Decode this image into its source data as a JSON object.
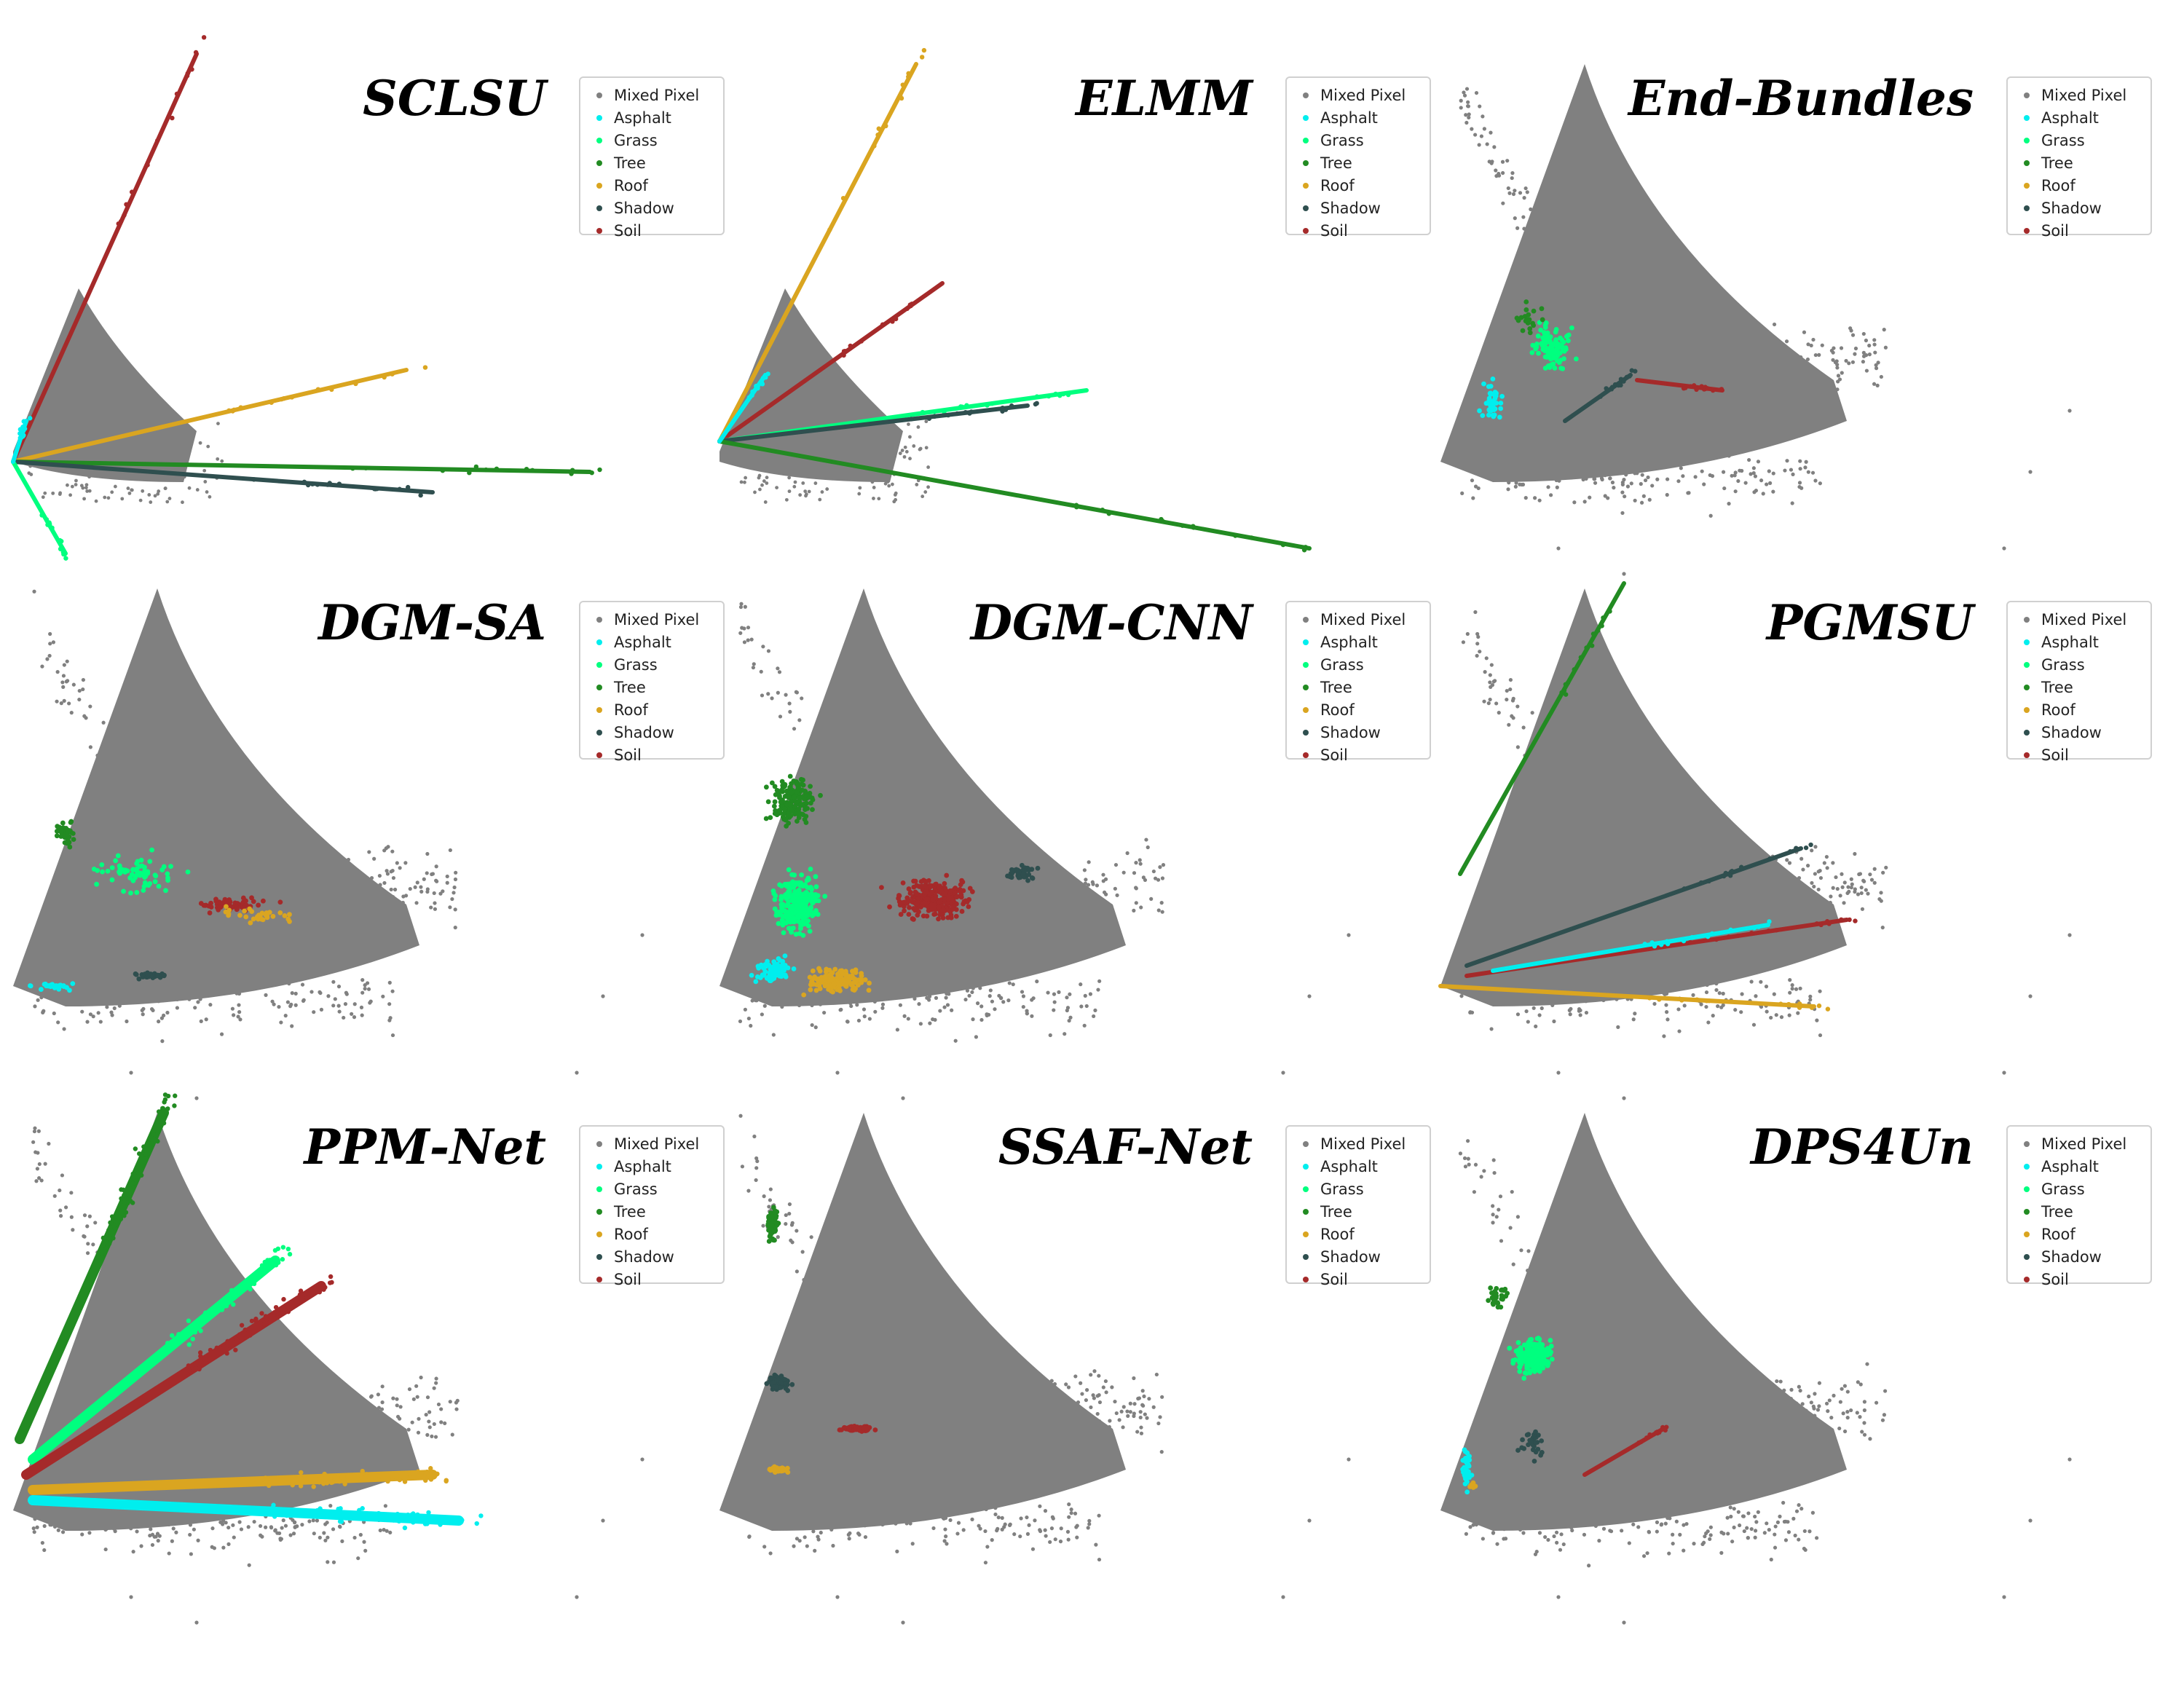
{
  "figure": {
    "legend_labels": [
      "Mixed Pixel",
      "Asphalt",
      "Grass",
      "Tree",
      "Roof",
      "Shadow",
      "Soil"
    ],
    "colors": {
      "Mixed Pixel": "#808080",
      "Asphalt": "#00eeee",
      "Grass": "#00ff7f",
      "Tree": "#228b22",
      "Roof": "#daa520",
      "Shadow": "#2f4f4f",
      "Soil": "#a52a2a"
    }
  },
  "chart_data": [
    {
      "type": "scatter",
      "title": "SCLSU",
      "cloud": "compact",
      "xlim": [
        0,
        1
      ],
      "ylim": [
        0,
        1
      ],
      "endmembers": [
        {
          "name": "Soil",
          "shape": "line",
          "from": [
            0.02,
            0.82
          ],
          "to": [
            0.3,
            0.02
          ]
        },
        {
          "name": "Roof",
          "shape": "line",
          "from": [
            0.02,
            0.82
          ],
          "to": [
            0.62,
            0.64
          ]
        },
        {
          "name": "Tree",
          "shape": "line",
          "from": [
            0.02,
            0.82
          ],
          "to": [
            0.9,
            0.84
          ]
        },
        {
          "name": "Shadow",
          "shape": "line",
          "from": [
            0.02,
            0.82
          ],
          "to": [
            0.66,
            0.88
          ]
        },
        {
          "name": "Grass",
          "shape": "line",
          "from": [
            0.02,
            0.82
          ],
          "to": [
            0.1,
            1.0
          ]
        },
        {
          "name": "Asphalt",
          "shape": "line",
          "from": [
            0.02,
            0.82
          ],
          "to": [
            0.04,
            0.74
          ]
        }
      ]
    },
    {
      "type": "scatter",
      "title": "ELMM",
      "cloud": "compact",
      "xlim": [
        0,
        1
      ],
      "ylim": [
        0,
        1
      ],
      "endmembers": [
        {
          "name": "Roof",
          "shape": "line",
          "from": [
            0.02,
            0.78
          ],
          "to": [
            0.32,
            0.04
          ]
        },
        {
          "name": "Soil",
          "shape": "line",
          "from": [
            0.02,
            0.78
          ],
          "to": [
            0.36,
            0.47
          ]
        },
        {
          "name": "Grass",
          "shape": "line",
          "from": [
            0.02,
            0.78
          ],
          "to": [
            0.58,
            0.68
          ]
        },
        {
          "name": "Shadow",
          "shape": "line",
          "from": [
            0.02,
            0.78
          ],
          "to": [
            0.49,
            0.71
          ]
        },
        {
          "name": "Tree",
          "shape": "line",
          "from": [
            0.02,
            0.78
          ],
          "to": [
            0.92,
            0.99
          ]
        },
        {
          "name": "Asphalt",
          "shape": "line",
          "from": [
            0.02,
            0.78
          ],
          "to": [
            0.09,
            0.65
          ]
        }
      ]
    },
    {
      "type": "scatter",
      "title": "End-Bundles",
      "cloud": "triangle",
      "xlim": [
        0,
        1
      ],
      "ylim": [
        0,
        1
      ],
      "endmembers": [
        {
          "name": "Asphalt",
          "shape": "cluster",
          "center": [
            0.1,
            0.7
          ],
          "spread": [
            0.02,
            0.06
          ],
          "n": 40
        },
        {
          "name": "Grass",
          "shape": "cluster",
          "center": [
            0.19,
            0.6
          ],
          "spread": [
            0.04,
            0.06
          ],
          "n": 120
        },
        {
          "name": "Tree",
          "shape": "cluster",
          "center": [
            0.15,
            0.54
          ],
          "spread": [
            0.03,
            0.04
          ],
          "n": 20
        },
        {
          "name": "Shadow",
          "shape": "line",
          "from": [
            0.21,
            0.74
          ],
          "to": [
            0.31,
            0.65
          ]
        },
        {
          "name": "Soil",
          "shape": "line",
          "from": [
            0.32,
            0.66
          ],
          "to": [
            0.45,
            0.68
          ]
        }
      ]
    },
    {
      "type": "scatter",
      "title": "DGM-SA",
      "cloud": "triangle",
      "xlim": [
        0,
        1
      ],
      "ylim": [
        0,
        1
      ],
      "endmembers": [
        {
          "name": "Tree",
          "shape": "cluster",
          "center": [
            0.1,
            0.52
          ],
          "spread": [
            0.02,
            0.05
          ],
          "n": 40
        },
        {
          "name": "Grass",
          "shape": "cluster",
          "center": [
            0.21,
            0.6
          ],
          "spread": [
            0.09,
            0.05
          ],
          "n": 70
        },
        {
          "name": "Soil",
          "shape": "cluster",
          "center": [
            0.35,
            0.66
          ],
          "spread": [
            0.07,
            0.02
          ],
          "n": 60
        },
        {
          "name": "Roof",
          "shape": "cluster",
          "center": [
            0.4,
            0.68
          ],
          "spread": [
            0.08,
            0.02
          ],
          "n": 30
        },
        {
          "name": "Shadow",
          "shape": "cluster",
          "center": [
            0.23,
            0.8
          ],
          "spread": [
            0.04,
            0.01
          ],
          "n": 30
        },
        {
          "name": "Asphalt",
          "shape": "cluster",
          "center": [
            0.08,
            0.82
          ],
          "spread": [
            0.04,
            0.01
          ],
          "n": 25
        }
      ]
    },
    {
      "type": "scatter",
      "title": "DGM-CNN",
      "cloud": "triangle",
      "xlim": [
        0,
        1
      ],
      "ylim": [
        0,
        1
      ],
      "endmembers": [
        {
          "name": "Tree",
          "shape": "cluster",
          "center": [
            0.13,
            0.46
          ],
          "spread": [
            0.05,
            0.06
          ],
          "n": 180
        },
        {
          "name": "Grass",
          "shape": "cluster",
          "center": [
            0.14,
            0.66
          ],
          "spread": [
            0.05,
            0.08
          ],
          "n": 260
        },
        {
          "name": "Asphalt",
          "shape": "cluster",
          "center": [
            0.1,
            0.79
          ],
          "spread": [
            0.04,
            0.03
          ],
          "n": 90
        },
        {
          "name": "Roof",
          "shape": "cluster",
          "center": [
            0.2,
            0.81
          ],
          "spread": [
            0.06,
            0.03
          ],
          "n": 180
        },
        {
          "name": "Soil",
          "shape": "cluster",
          "center": [
            0.35,
            0.65
          ],
          "spread": [
            0.08,
            0.05
          ],
          "n": 300
        },
        {
          "name": "Shadow",
          "shape": "cluster",
          "center": [
            0.48,
            0.6
          ],
          "spread": [
            0.03,
            0.02
          ],
          "n": 50
        }
      ]
    },
    {
      "type": "scatter",
      "title": "PGMSU",
      "cloud": "triangle",
      "xlim": [
        0,
        1
      ],
      "ylim": [
        0,
        1
      ],
      "endmembers": [
        {
          "name": "Tree",
          "shape": "line",
          "from": [
            0.05,
            0.6
          ],
          "to": [
            0.3,
            0.03
          ]
        },
        {
          "name": "Shadow",
          "shape": "line",
          "from": [
            0.06,
            0.78
          ],
          "to": [
            0.57,
            0.55
          ]
        },
        {
          "name": "Soil",
          "shape": "line",
          "from": [
            0.06,
            0.8
          ],
          "to": [
            0.64,
            0.69
          ]
        },
        {
          "name": "Asphalt",
          "shape": "line",
          "from": [
            0.1,
            0.79
          ],
          "to": [
            0.52,
            0.7
          ]
        },
        {
          "name": "Roof",
          "shape": "line",
          "from": [
            0.02,
            0.82
          ],
          "to": [
            0.59,
            0.86
          ]
        }
      ]
    },
    {
      "type": "scatter",
      "title": "PPM-Net",
      "cloud": "triangle",
      "xlim": [
        0,
        1
      ],
      "ylim": [
        0,
        1
      ],
      "endmembers": [
        {
          "name": "Tree",
          "shape": "band",
          "from": [
            0.03,
            0.68
          ],
          "to": [
            0.25,
            0.04
          ]
        },
        {
          "name": "Grass",
          "shape": "band",
          "from": [
            0.05,
            0.72
          ],
          "to": [
            0.42,
            0.33
          ]
        },
        {
          "name": "Soil",
          "shape": "band",
          "from": [
            0.04,
            0.75
          ],
          "to": [
            0.49,
            0.38
          ]
        },
        {
          "name": "Roof",
          "shape": "band",
          "from": [
            0.05,
            0.78
          ],
          "to": [
            0.66,
            0.75
          ]
        },
        {
          "name": "Asphalt",
          "shape": "band",
          "from": [
            0.05,
            0.8
          ],
          "to": [
            0.7,
            0.84
          ]
        }
      ]
    },
    {
      "type": "scatter",
      "title": "SSAF-Net",
      "cloud": "triangle",
      "xlim": [
        0,
        1
      ],
      "ylim": [
        0,
        1
      ],
      "endmembers": [
        {
          "name": "Tree",
          "shape": "cluster",
          "center": [
            0.1,
            0.26
          ],
          "spread": [
            0.012,
            0.04
          ],
          "n": 90
        },
        {
          "name": "Shadow",
          "shape": "cluster",
          "center": [
            0.11,
            0.57
          ],
          "spread": [
            0.02,
            0.018
          ],
          "n": 120
        },
        {
          "name": "Roof",
          "shape": "cluster",
          "center": [
            0.11,
            0.74
          ],
          "spread": [
            0.02,
            0.007
          ],
          "n": 60
        },
        {
          "name": "Soil",
          "shape": "cluster",
          "center": [
            0.23,
            0.66
          ],
          "spread": [
            0.03,
            0.008
          ],
          "n": 70
        }
      ]
    },
    {
      "type": "scatter",
      "title": "DPS4Un",
      "cloud": "triangle",
      "xlim": [
        0,
        1
      ],
      "ylim": [
        0,
        1
      ],
      "endmembers": [
        {
          "name": "Asphalt",
          "shape": "cluster",
          "center": [
            0.06,
            0.74
          ],
          "spread": [
            0.01,
            0.05
          ],
          "n": 40
        },
        {
          "name": "Grass",
          "shape": "cluster",
          "center": [
            0.16,
            0.52
          ],
          "spread": [
            0.04,
            0.05
          ],
          "n": 200
        },
        {
          "name": "Tree",
          "shape": "cluster",
          "center": [
            0.11,
            0.4
          ],
          "spread": [
            0.02,
            0.04
          ],
          "n": 30
        },
        {
          "name": "Shadow",
          "shape": "cluster",
          "center": [
            0.16,
            0.69
          ],
          "spread": [
            0.03,
            0.04
          ],
          "n": 30
        },
        {
          "name": "Roof",
          "shape": "cluster",
          "center": [
            0.07,
            0.77
          ],
          "spread": [
            0.005,
            0.01
          ],
          "n": 10
        },
        {
          "name": "Soil",
          "shape": "line",
          "from": [
            0.24,
            0.75
          ],
          "to": [
            0.36,
            0.66
          ]
        }
      ]
    }
  ]
}
